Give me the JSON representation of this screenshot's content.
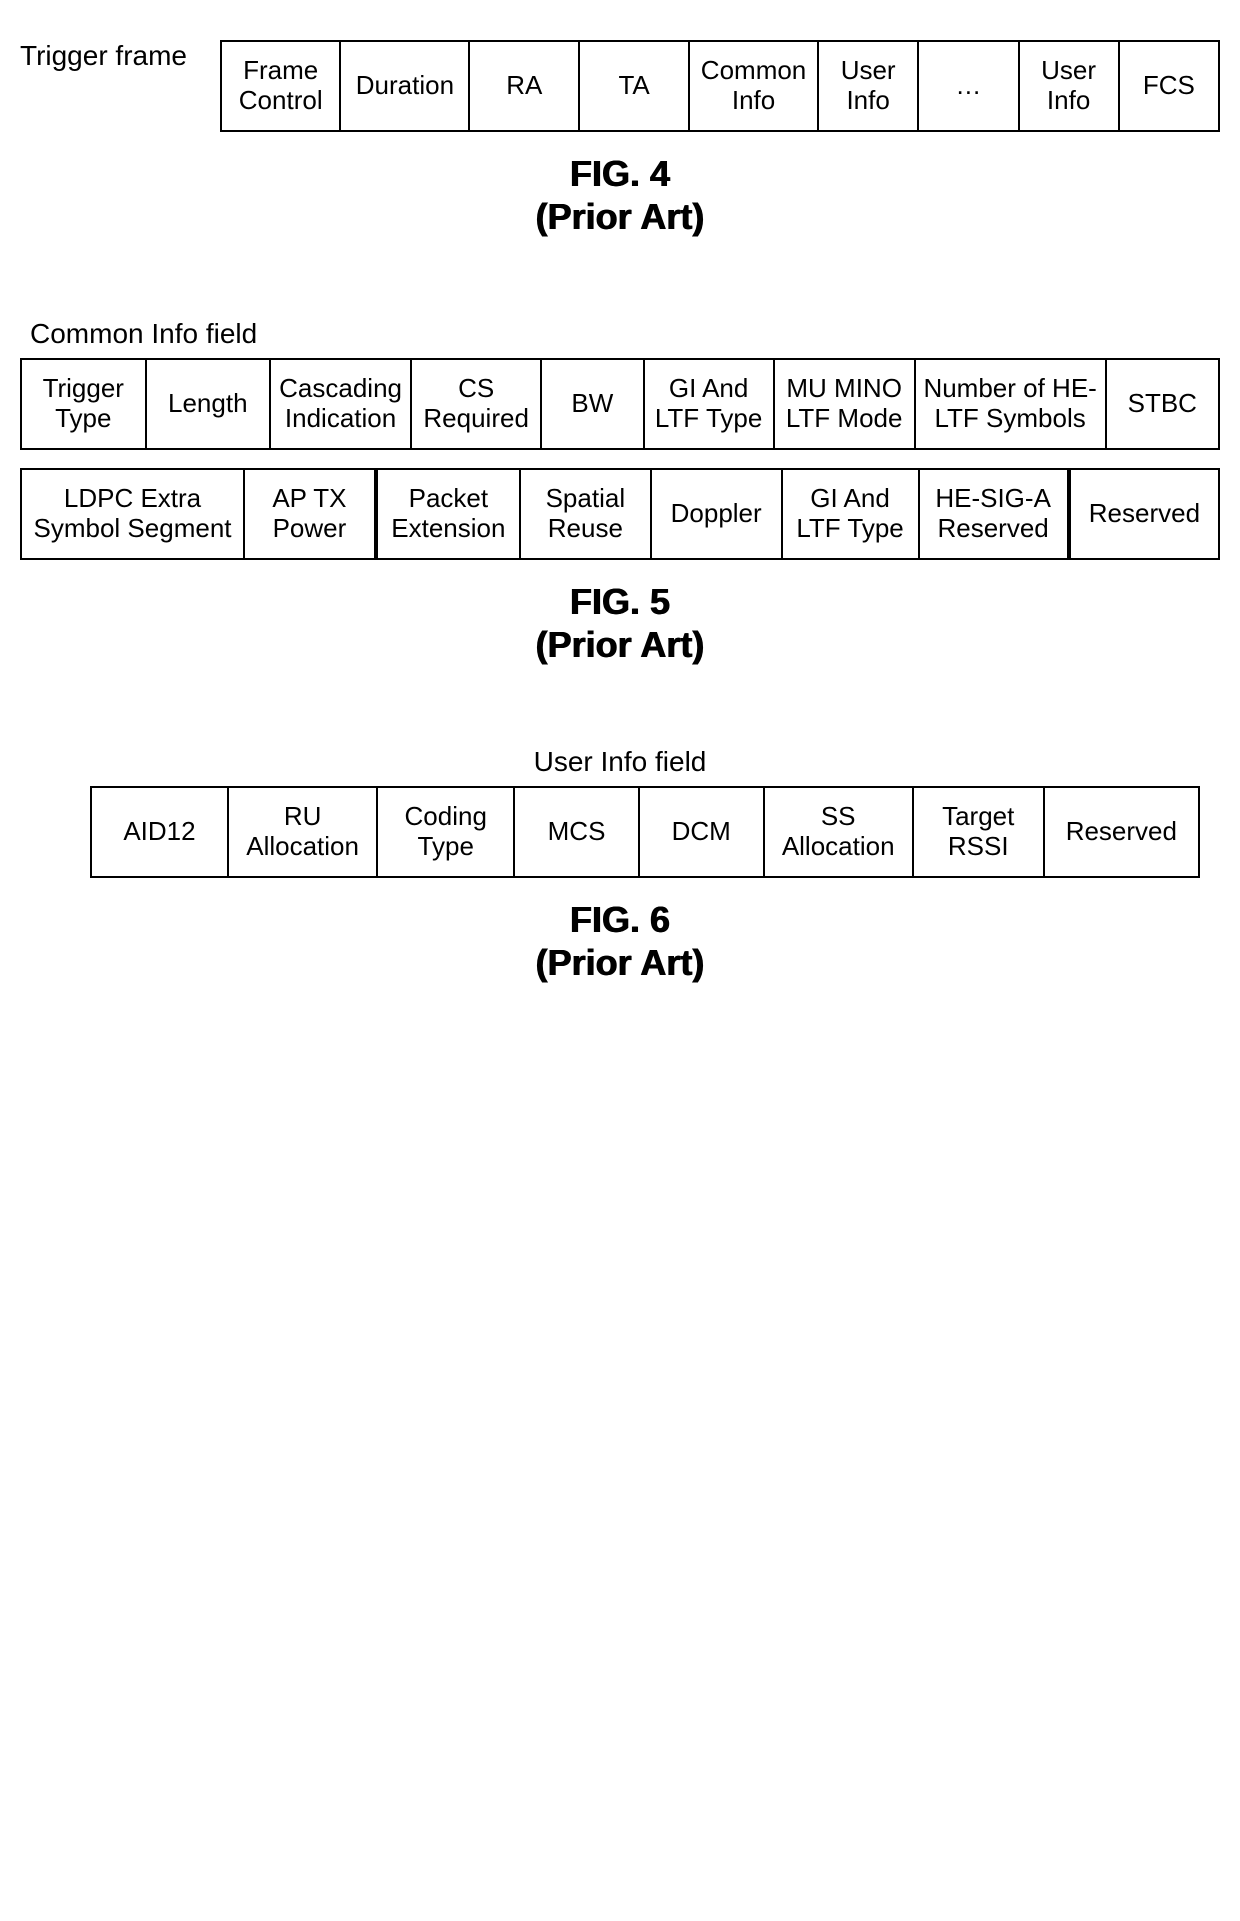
{
  "figure4": {
    "sideLabel": "Trigger frame",
    "fields": [
      {
        "label": "Frame\nControl",
        "flex": 1.1
      },
      {
        "label": "Duration",
        "flex": 1.2
      },
      {
        "label": "RA",
        "flex": 1.0
      },
      {
        "label": "TA",
        "flex": 1.0
      },
      {
        "label": "Common\nInfo",
        "flex": 1.2
      },
      {
        "label": "User\nInfo",
        "flex": 0.9
      },
      {
        "label": "…",
        "flex": 0.9
      },
      {
        "label": "User\nInfo",
        "flex": 0.9
      },
      {
        "label": "FCS",
        "flex": 0.9
      }
    ],
    "caption": "FIG. 4",
    "subcaption": "(Prior Art)"
  },
  "figure5": {
    "title": "Common Info field",
    "row1": [
      {
        "label": "Trigger\nType",
        "flex": 1.0
      },
      {
        "label": "Length",
        "flex": 1.0
      },
      {
        "label": "Cascading\nIndication",
        "flex": 1.15
      },
      {
        "label": "CS\nRequired",
        "flex": 1.05
      },
      {
        "label": "BW",
        "flex": 0.8
      },
      {
        "label": "GI And\nLTF Type",
        "flex": 1.05
      },
      {
        "label": "MU MINO\nLTF Mode",
        "flex": 1.15
      },
      {
        "label": "Number of HE-\nLTF Symbols",
        "flex": 1.6
      },
      {
        "label": "STBC",
        "flex": 0.9
      }
    ],
    "row2": [
      {
        "label": "LDPC Extra\nSymbol Segment",
        "flex": 1.7,
        "thickRight": false
      },
      {
        "label": "AP TX\nPower",
        "flex": 0.95,
        "thickRight": true
      },
      {
        "label": "Packet\nExtension",
        "flex": 1.05,
        "thickRight": false
      },
      {
        "label": "Spatial\nReuse",
        "flex": 0.95,
        "thickRight": false
      },
      {
        "label": "Doppler",
        "flex": 0.95,
        "thickRight": false
      },
      {
        "label": "GI And\nLTF Type",
        "flex": 1.0,
        "thickRight": false
      },
      {
        "label": "HE-SIG-A\nReserved",
        "flex": 1.1,
        "thickRight": true
      },
      {
        "label": "Reserved",
        "flex": 1.1,
        "thickRight": false
      }
    ],
    "caption": "FIG. 5",
    "subcaption": "(Prior Art)"
  },
  "figure6": {
    "title": "User Info field",
    "fields": [
      {
        "label": "AID12",
        "flex": 1.0
      },
      {
        "label": "RU\nAllocation",
        "flex": 1.1
      },
      {
        "label": "Coding\nType",
        "flex": 1.0
      },
      {
        "label": "MCS",
        "flex": 0.9
      },
      {
        "label": "DCM",
        "flex": 0.9
      },
      {
        "label": "SS\nAllocation",
        "flex": 1.1
      },
      {
        "label": "Target\nRSSI",
        "flex": 0.95
      },
      {
        "label": "Reserved",
        "flex": 1.15
      }
    ],
    "caption": "FIG. 6",
    "subcaption": "(Prior Art)"
  },
  "colors": {
    "background": "#ffffff",
    "border": "#000000",
    "text": "#000000"
  },
  "typography": {
    "cellFontSize": 26,
    "labelFontSize": 28,
    "captionFontSize": 36,
    "fontFamily": "Arial"
  }
}
